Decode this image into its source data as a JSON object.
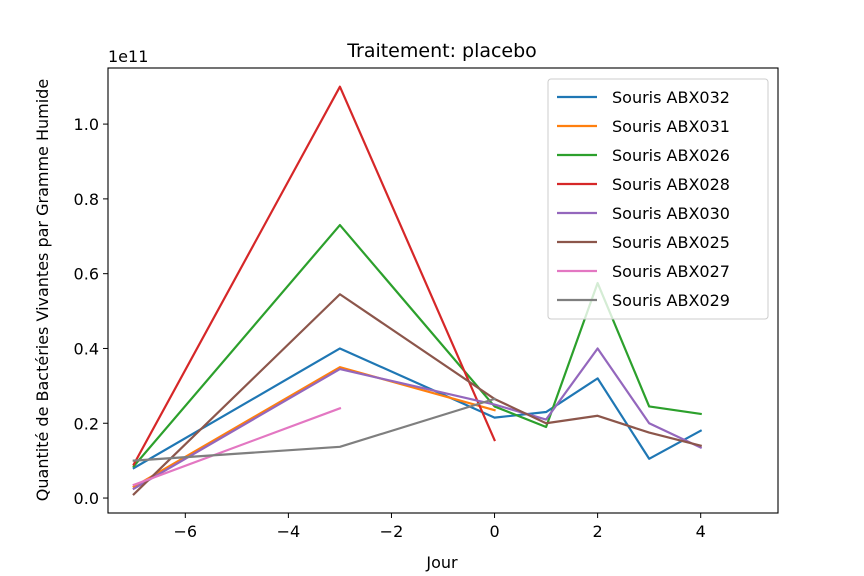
{
  "chart_data": {
    "type": "line",
    "title": "Traitement: placebo",
    "xlabel": "Jour",
    "ylabel": "Quantité de Bactéries Vivantes par Gramme Humide",
    "y_scale_label": "1e11",
    "y_unit_multiplier": 100000000000,
    "xlim": [
      -7.5,
      5.5
    ],
    "ylim": [
      -0.04,
      1.15
    ],
    "x_ticks": [
      -6,
      -4,
      -2,
      0,
      2,
      4
    ],
    "x_tick_labels": [
      "−6",
      "−4",
      "−2",
      "0",
      "2",
      "4"
    ],
    "y_ticks": [
      0.0,
      0.2,
      0.4,
      0.6,
      0.8,
      1.0
    ],
    "y_tick_labels": [
      "0.0",
      "0.2",
      "0.4",
      "0.6",
      "0.8",
      "1.0"
    ],
    "grid": false,
    "legend_position": "top-right",
    "series": [
      {
        "name": "Souris ABX032",
        "color": "#1f77b4",
        "x": [
          -7,
          -3,
          0,
          1,
          2,
          3,
          4
        ],
        "y": [
          0.08,
          0.4,
          0.215,
          0.23,
          0.32,
          0.105,
          0.18
        ]
      },
      {
        "name": "Souris ABX031",
        "color": "#ff7f0e",
        "x": [
          -7,
          -3,
          0
        ],
        "y": [
          0.03,
          0.35,
          0.235
        ]
      },
      {
        "name": "Souris ABX026",
        "color": "#2ca02c",
        "x": [
          -7,
          -3,
          0,
          1,
          2,
          3,
          4
        ],
        "y": [
          0.085,
          0.73,
          0.245,
          0.19,
          0.575,
          0.245,
          0.225
        ]
      },
      {
        "name": "Souris ABX028",
        "color": "#d62728",
        "x": [
          -7,
          -3,
          0
        ],
        "y": [
          0.09,
          1.1,
          0.155
        ]
      },
      {
        "name": "Souris ABX030",
        "color": "#9467bd",
        "x": [
          -7,
          -3,
          0,
          1,
          2,
          3,
          4
        ],
        "y": [
          0.025,
          0.345,
          0.25,
          0.21,
          0.4,
          0.2,
          0.135
        ]
      },
      {
        "name": "Souris ABX025",
        "color": "#8c564b",
        "x": [
          -7,
          -3,
          0,
          1,
          2,
          3,
          4
        ],
        "y": [
          0.01,
          0.545,
          0.265,
          0.2,
          0.22,
          0.175,
          0.14
        ]
      },
      {
        "name": "Souris ABX027",
        "color": "#e377c2",
        "x": [
          -7,
          -3
        ],
        "y": [
          0.035,
          0.24
        ]
      },
      {
        "name": "Souris ABX029",
        "color": "#7f7f7f",
        "x": [
          -7,
          -3,
          0
        ],
        "y": [
          0.1,
          0.137,
          0.265
        ]
      }
    ]
  }
}
